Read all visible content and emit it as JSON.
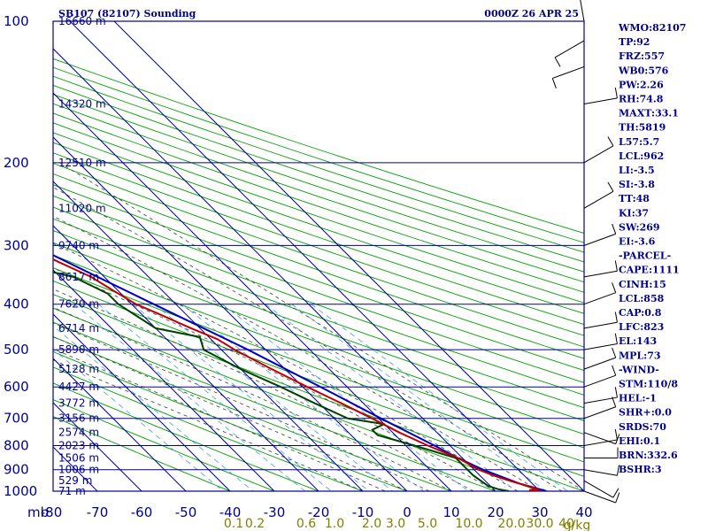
{
  "header": {
    "title": "SB107 (82107) Sounding",
    "datetime": "0000Z 26 APR 25"
  },
  "colors": {
    "grid": "#00008b",
    "dry_adiabat": "#00a000",
    "moist_adiabat": "#404040",
    "mixing_ratio": "#40a0e0",
    "temperature": "#c00000",
    "dewpoint": "#004000",
    "parcel": "#0000c0",
    "wind_barb": "#000000",
    "mixing_label": "#808000"
  },
  "chart_data": {
    "type": "skew-t",
    "xlabel": "",
    "pressure_unit_label": "mb",
    "mixing_unit_label": "g/kg",
    "pressure_levels": [
      100,
      200,
      300,
      400,
      500,
      600,
      700,
      800,
      900,
      1000
    ],
    "pressure_labels": [
      "100",
      "200",
      "300",
      "400",
      "500",
      "600",
      "700",
      "800",
      "900",
      "1000"
    ],
    "temperature_ticks": [
      -80,
      -70,
      -60,
      -50,
      -40,
      -30,
      -20,
      -10,
      0,
      10,
      20,
      30,
      40
    ],
    "temperature_labels": [
      "-80",
      "-70",
      "-60",
      "-50",
      "-40",
      "-30",
      "-20",
      "-10",
      "0",
      "10",
      "20",
      "30",
      "40"
    ],
    "height_labels": [
      {
        "p": 100,
        "text": "16660 m"
      },
      {
        "p": 150,
        "text": "14320 m"
      },
      {
        "p": 200,
        "text": "12510 m"
      },
      {
        "p": 250,
        "text": "11020 m"
      },
      {
        "p": 300,
        "text": "9740 m"
      },
      {
        "p": 350,
        "text": "8617 m"
      },
      {
        "p": 400,
        "text": "7620 m"
      },
      {
        "p": 450,
        "text": "6714 m"
      },
      {
        "p": 500,
        "text": "5890 m"
      },
      {
        "p": 550,
        "text": "5128 m"
      },
      {
        "p": 600,
        "text": "4427 m"
      },
      {
        "p": 650,
        "text": "3772 m"
      },
      {
        "p": 700,
        "text": "3156 m"
      },
      {
        "p": 750,
        "text": "2574 m"
      },
      {
        "p": 800,
        "text": "2023 m"
      },
      {
        "p": 850,
        "text": "1506 m"
      },
      {
        "p": 900,
        "text": "1006 m"
      },
      {
        "p": 950,
        "text": "529 m"
      },
      {
        "p": 1000,
        "text": "71 m"
      }
    ],
    "mixing_ratio_labels": [
      "0.1",
      "0.2",
      "0.6",
      "1.0",
      "2.0",
      "3.0",
      "5.0",
      "10.0",
      "20.0",
      "30.0",
      "40"
    ],
    "mixing_ratio_values": [
      0.1,
      0.2,
      0.6,
      1.0,
      2.0,
      3.0,
      5.0,
      10.0,
      20.0,
      30.0,
      40
    ],
    "temperature_profile": [
      {
        "p": 1000,
        "t": 30.5
      },
      {
        "p": 995,
        "t": 28
      },
      {
        "p": 990,
        "t": 30
      },
      {
        "p": 950,
        "t": 25.5
      },
      {
        "p": 925,
        "t": 23
      },
      {
        "p": 900,
        "t": 21
      },
      {
        "p": 850,
        "t": 19
      },
      {
        "p": 800,
        "t": 15
      },
      {
        "p": 750,
        "t": 11.5
      },
      {
        "p": 700,
        "t": 8.5
      },
      {
        "p": 650,
        "t": 5
      },
      {
        "p": 600,
        "t": 1
      },
      {
        "p": 550,
        "t": -3
      },
      {
        "p": 500,
        "t": -7
      },
      {
        "p": 475,
        "t": -8.5
      },
      {
        "p": 450,
        "t": -12
      },
      {
        "p": 420,
        "t": -16
      },
      {
        "p": 400,
        "t": -19
      },
      {
        "p": 375,
        "t": -21
      },
      {
        "p": 350,
        "t": -23
      },
      {
        "p": 325,
        "t": -27
      },
      {
        "p": 300,
        "t": -31
      },
      {
        "p": 275,
        "t": -35
      },
      {
        "p": 250,
        "t": -40
      },
      {
        "p": 225,
        "t": -45
      },
      {
        "p": 200,
        "t": -50
      },
      {
        "p": 175,
        "t": -56
      },
      {
        "p": 150,
        "t": -63
      },
      {
        "p": 125,
        "t": -70
      },
      {
        "p": 100,
        "t": -80
      }
    ],
    "dewpoint_profile": [
      {
        "p": 1000,
        "t": 23
      },
      {
        "p": 990,
        "t": 21
      },
      {
        "p": 975,
        "t": 19.5
      },
      {
        "p": 950,
        "t": 19
      },
      {
        "p": 925,
        "t": 18.5
      },
      {
        "p": 900,
        "t": 18.5
      },
      {
        "p": 850,
        "t": 18.5
      },
      {
        "p": 800,
        "t": 12
      },
      {
        "p": 760,
        "t": 6
      },
      {
        "p": 740,
        "t": 6
      },
      {
        "p": 720,
        "t": 10
      },
      {
        "p": 700,
        "t": 3
      },
      {
        "p": 650,
        "t": -1
      },
      {
        "p": 600,
        "t": -5
      },
      {
        "p": 550,
        "t": -10
      },
      {
        "p": 500,
        "t": -14
      },
      {
        "p": 470,
        "t": -12
      },
      {
        "p": 460,
        "t": -16
      },
      {
        "p": 450,
        "t": -20
      },
      {
        "p": 400,
        "t": -23
      },
      {
        "p": 380,
        "t": -23
      },
      {
        "p": 350,
        "t": -27
      },
      {
        "p": 330,
        "t": -36
      },
      {
        "p": 300,
        "t": -45
      },
      {
        "p": 270,
        "t": -51
      },
      {
        "p": 250,
        "t": -52
      },
      {
        "p": 200,
        "t": -62
      },
      {
        "p": 180,
        "t": -64
      },
      {
        "p": 165,
        "t": -56
      },
      {
        "p": 160,
        "t": -67
      },
      {
        "p": 150,
        "t": -69
      },
      {
        "p": 140,
        "t": -68
      },
      {
        "p": 125,
        "t": -75
      },
      {
        "p": 110,
        "t": -79
      },
      {
        "p": 100,
        "t": -80
      }
    ],
    "parcel_profile": [
      {
        "p": 1000,
        "t": 31.5
      },
      {
        "p": 962,
        "t": 27
      },
      {
        "p": 900,
        "t": 22
      },
      {
        "p": 850,
        "t": 19
      },
      {
        "p": 800,
        "t": 16.5
      },
      {
        "p": 700,
        "t": 10.5
      },
      {
        "p": 600,
        "t": 4
      },
      {
        "p": 500,
        "t": -4
      },
      {
        "p": 400,
        "t": -15
      },
      {
        "p": 300,
        "t": -29
      },
      {
        "p": 250,
        "t": -38
      },
      {
        "p": 200,
        "t": -49
      },
      {
        "p": 150,
        "t": -62
      },
      {
        "p": 125,
        "t": -70
      },
      {
        "p": 110,
        "t": -76
      }
    ],
    "winds": [
      {
        "p": 1000,
        "dir": 110,
        "spd": 8
      },
      {
        "p": 950,
        "dir": 120,
        "spd": 10
      },
      {
        "p": 900,
        "dir": 100,
        "spd": 10
      },
      {
        "p": 850,
        "dir": 90,
        "spd": 10
      },
      {
        "p": 800,
        "dir": 80,
        "spd": 10
      },
      {
        "p": 750,
        "dir": 110,
        "spd": 10
      },
      {
        "p": 700,
        "dir": 70,
        "spd": 10
      },
      {
        "p": 650,
        "dir": 80,
        "spd": 10
      },
      {
        "p": 600,
        "dir": 70,
        "spd": 10
      },
      {
        "p": 550,
        "dir": 70,
        "spd": 10
      },
      {
        "p": 500,
        "dir": 80,
        "spd": 10
      },
      {
        "p": 450,
        "dir": 80,
        "spd": 10
      },
      {
        "p": 400,
        "dir": 70,
        "spd": 10
      },
      {
        "p": 350,
        "dir": 80,
        "spd": 10
      },
      {
        "p": 300,
        "dir": 70,
        "spd": 10
      },
      {
        "p": 250,
        "dir": 60,
        "spd": 10
      },
      {
        "p": 200,
        "dir": 60,
        "spd": 10
      },
      {
        "p": 150,
        "dir": 80,
        "spd": 10
      },
      {
        "p": 125,
        "dir": 250,
        "spd": 10
      },
      {
        "p": 110,
        "dir": 240,
        "spd": 10
      },
      {
        "p": 100,
        "dir": 350,
        "spd": 10
      }
    ]
  },
  "indices": [
    "WMO:82107",
    "TP:92",
    "FRZ:557",
    "WB0:576",
    "PW:2.26",
    "RH:74.8",
    "MAXT:33.1",
    "TH:5819",
    "L57:5.7",
    "LCL:962",
    "LI:-3.5",
    "SI:-3.8",
    "TT:48",
    "KI:37",
    "SW:269",
    "EI:-3.6",
    "-PARCEL-",
    "CAPE:1111",
    "CINH:15",
    "LCL:858",
    "CAP:0.8",
    "LFC:823",
    "EL:143",
    "MPL:73",
    "-WIND-",
    "STM:110/8",
    "HEL:-1",
    "SHR+:0.0",
    "SRDS:70",
    "EHI:0.1",
    "BRN:332.6",
    "BSHR:3"
  ]
}
